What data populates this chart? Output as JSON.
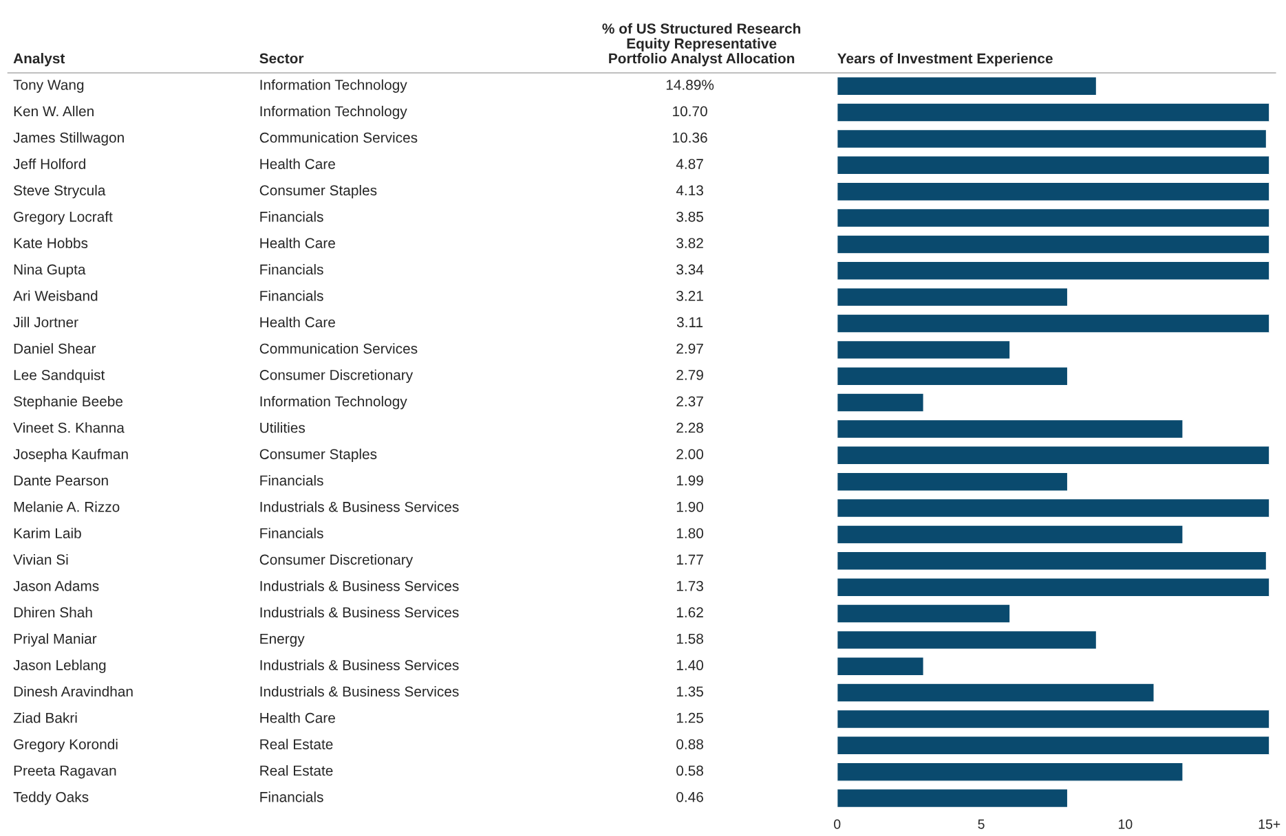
{
  "chart_data": [
    {
      "type": "other",
      "categories": [
        "Analyst",
        "Sector",
        "% of US Structured Research\nEquity Representative\nPortfolio Analyst Allocation"
      ],
      "y_categories": [
        "Tony Wang",
        "Ken W. Allen",
        "James Stillwagon",
        "Jeff Holford",
        "Steve Strycula",
        "Gregory Locraft",
        "Kate Hobbs",
        "Nina Gupta",
        "Ari Weisband",
        "Jill Jortner",
        "Daniel Shear",
        "Lee Sandquist",
        "Stephanie Beebe",
        "Vineet S. Khanna",
        "Josepha Kaufman",
        "Dante Pearson",
        "Melanie A. Rizzo",
        "Karim Laib",
        "Vivian Si",
        "Jason Adams",
        "Dhiren Shah",
        "Priyal Maniar",
        "Jason Leblang",
        "Dinesh Aravindhan",
        "Ziad Bakri",
        "Gregory Korondi",
        "Preeta Ragavan",
        "Teddy Oaks"
      ],
      "y2_categories": [
        "Information Technology",
        "Information Technology",
        "Communication Services",
        "Health Care",
        "Consumer Staples",
        "Financials",
        "Health Care",
        "Financials",
        "Financials",
        "Health Care",
        "Communication Services",
        "Consumer Discretionary",
        "Information Technology",
        "Utilities",
        "Consumer Staples",
        "Financials",
        "Industrials & Business Services",
        "Financials",
        "Consumer Discretionary",
        "Industrials & Business Services",
        "Industrials & Business Services",
        "Energy",
        "Industrials & Business Services",
        "Industrials & Business Services",
        "Health Care",
        "Real Estate",
        "Real Estate",
        "Financials"
      ],
      "value_labels": [
        "14.89%",
        "10.70",
        "10.36",
        "4.87",
        "4.13",
        "3.85",
        "3.82",
        "3.34",
        "3.21",
        "3.11",
        "2.97",
        "2.79",
        "2.37",
        "2.28",
        "2.00",
        "1.99",
        "1.90",
        "1.80",
        "1.77",
        "1.73",
        "1.62",
        "1.58",
        "1.40",
        "1.35",
        "1.25",
        "0.88",
        "0.58",
        "0.46"
      ]
    },
    {
      "type": "bar",
      "orientation": "horizontal",
      "title": "Years of Investment Experience",
      "categories": [
        null,
        null,
        null,
        null,
        null,
        null,
        null,
        null,
        null,
        null,
        null,
        null,
        null,
        null,
        null,
        null,
        null,
        null,
        null,
        null,
        null,
        null,
        null,
        null,
        null,
        null,
        null,
        null
      ],
      "values": [
        9,
        15,
        14.9,
        15,
        15,
        15,
        15,
        15,
        8,
        15,
        6,
        8,
        3,
        12,
        15,
        8,
        15,
        12,
        14.9,
        15,
        6,
        9,
        3,
        11,
        15,
        15,
        12,
        8
      ],
      "color": "#0a4a6e",
      "xlim": [
        0,
        15
      ],
      "xticks": [
        0,
        5,
        10,
        {
          "value": 15,
          "label": "15+"
        }
      ],
      "grid": false
    }
  ]
}
